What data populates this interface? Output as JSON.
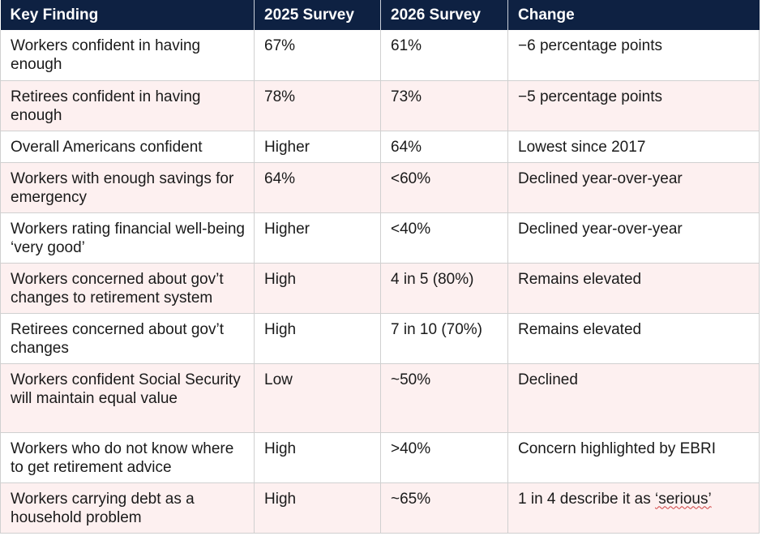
{
  "table": {
    "headers": [
      "Key Finding",
      "2025 Survey",
      "2026 Survey",
      "Change"
    ],
    "rows": [
      {
        "finding": "Workers confident in having enough",
        "y2025": "67%",
        "y2026": "61%",
        "change": "−6 percentage points"
      },
      {
        "finding": "Retirees confident in having enough",
        "y2025": "78%",
        "y2026": "73%",
        "change": "−5 percentage points"
      },
      {
        "finding": "Overall Americans confident",
        "y2025": "Higher",
        "y2026": "64%",
        "change": "Lowest since 2017"
      },
      {
        "finding": "Workers with enough savings for emergency",
        "y2025": "64%",
        "y2026": "<60%",
        "change": "Declined year-over-year"
      },
      {
        "finding": "Workers rating financial well-being ‘very good’",
        "y2025": "Higher",
        "y2026": "<40%",
        "change": "Declined year-over-year"
      },
      {
        "finding": "Workers concerned about gov’t changes to retirement system",
        "y2025": "High",
        "y2026": "4 in 5 (80%)",
        "change": "Remains elevated"
      },
      {
        "finding": "Retirees concerned about gov’t changes",
        "y2025": "High",
        "y2026": "7 in 10 (70%)",
        "change": "Remains elevated"
      },
      {
        "finding": "Workers confident Social Security will maintain equal value",
        "y2025": "Low",
        "y2026": "~50%",
        "change": "Declined"
      },
      {
        "finding": "Workers who do not know where to get retirement advice",
        "y2025": "High",
        "y2026": ">40%",
        "change": "Concern highlighted by EBRI"
      },
      {
        "finding": "Workers carrying debt as a household problem",
        "y2025": "High",
        "y2026": "~65%",
        "change_prefix": "1 in 4 describe it as ",
        "change_flagged": "‘serious’"
      }
    ]
  }
}
